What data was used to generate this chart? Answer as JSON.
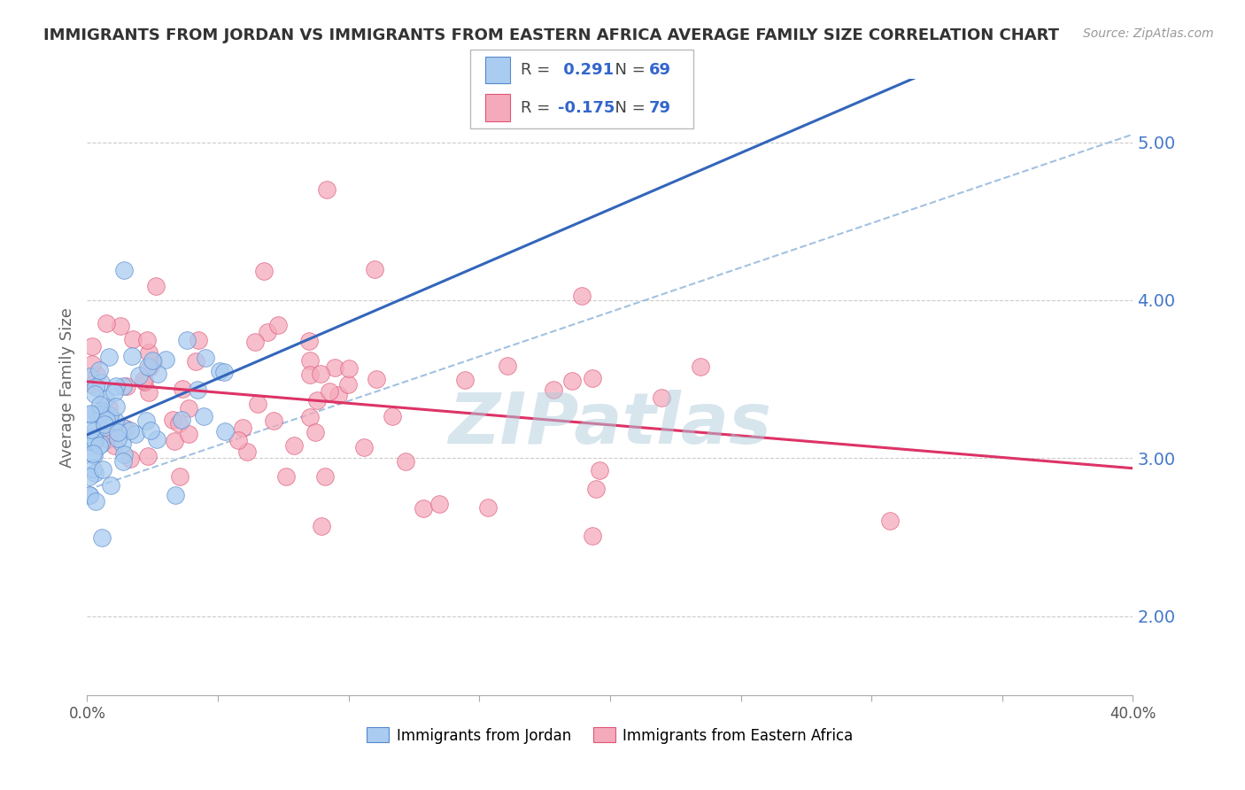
{
  "title": "IMMIGRANTS FROM JORDAN VS IMMIGRANTS FROM EASTERN AFRICA AVERAGE FAMILY SIZE CORRELATION CHART",
  "source": "Source: ZipAtlas.com",
  "ylabel": "Average Family Size",
  "legend1_label": "Immigrants from Jordan",
  "legend2_label": "Immigrants from Eastern Africa",
  "r1": 0.291,
  "n1": 69,
  "r2": -0.175,
  "n2": 79,
  "jordan_fill_color": "#aaccf0",
  "jordan_edge_color": "#5588cc",
  "eastern_fill_color": "#f5aabb",
  "eastern_edge_color": "#dd5577",
  "jordan_line_color": "#3366bb",
  "eastern_line_color": "#dd3366",
  "dashed_line_color": "#99bbdd",
  "watermark_color": "#b0ccdd",
  "xlim": [
    0.0,
    0.4
  ],
  "ylim": [
    1.5,
    5.4
  ],
  "yticks": [
    2.0,
    3.0,
    4.0,
    5.0
  ],
  "seed": 42
}
